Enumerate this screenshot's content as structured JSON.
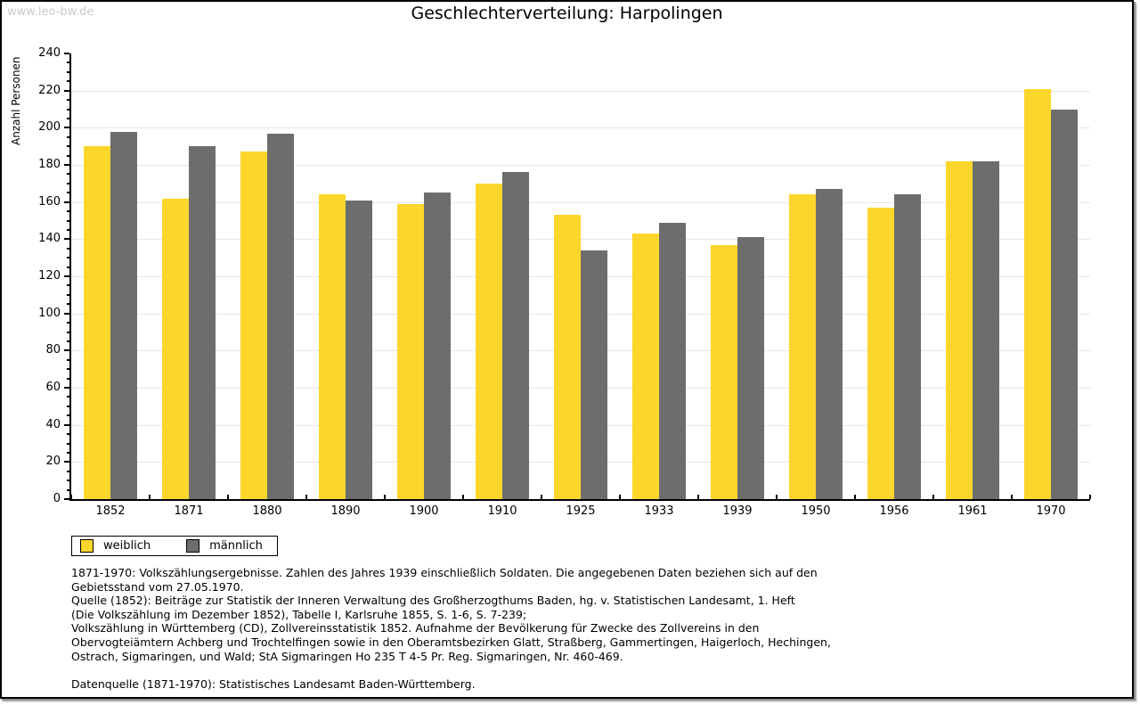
{
  "page": {
    "watermark": "www.leo-bw.de",
    "title": "Geschlechterverteilung: Harpolingen"
  },
  "chart_data": {
    "type": "bar",
    "title": "Geschlechterverteilung: Harpolingen",
    "xlabel": "",
    "ylabel": "Anzahl Personen",
    "ylim": [
      0,
      240
    ],
    "ytick_step": 20,
    "ytick_minor_step": 5,
    "grid": true,
    "legend_position": "bottom-left",
    "categories": [
      "1852",
      "1871",
      "1880",
      "1890",
      "1900",
      "1910",
      "1925",
      "1933",
      "1939",
      "1950",
      "1956",
      "1961",
      "1970"
    ],
    "series": [
      {
        "name": "weiblich",
        "color": "#FDD62C",
        "values": [
          190,
          162,
          187,
          164,
          159,
          170,
          153,
          143,
          137,
          164,
          157,
          182,
          221
        ]
      },
      {
        "name": "männlich",
        "color": "#6D6D6D",
        "values": [
          198,
          190,
          197,
          161,
          165,
          176,
          134,
          149,
          141,
          167,
          164,
          182,
          210
        ]
      }
    ]
  },
  "legend": {
    "items": [
      {
        "label": "weiblich",
        "color": "#FDD62C"
      },
      {
        "label": "männlich",
        "color": "#6D6D6D"
      }
    ]
  },
  "footer": {
    "lines": [
      "1871-1970: Volkszählungsergebnisse. Zahlen des Jahres 1939 einschließlich Soldaten. Die angegebenen Daten beziehen sich auf den",
      "Gebietsstand vom 27.05.1970.",
      "Quelle (1852): Beiträge zur Statistik der Inneren Verwaltung des Großherzogthums Baden, hg. v. Statistischen Landesamt, 1. Heft",
      "(Die Volkszählung im Dezember 1852), Tabelle I, Karlsruhe 1855, S. 1-6, S. 7-239;",
      "Volkszählung in Württemberg (CD), Zollvereinsstatistik 1852. Aufnahme der Bevölkerung für Zwecke des Zollvereins in den",
      "Obervogteiämtern Achberg und Trochtelfingen sowie in den Oberamtsbezirken Glatt, Straßberg, Gammertingen, Haigerloch, Hechingen,",
      "Ostrach, Sigmaringen, und Wald; StA Sigmaringen Ho 235 T 4-5 Pr. Reg. Sigmaringen, Nr. 460-469."
    ],
    "datasource": "Datenquelle (1871-1970): Statistisches Landesamt Baden-Württemberg."
  }
}
